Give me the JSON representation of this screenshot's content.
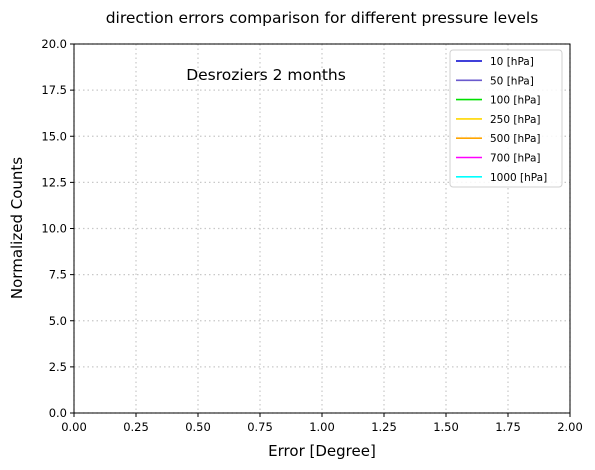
{
  "chart_data": {
    "type": "line",
    "title": "direction errors comparison for different pressure levels",
    "annotation": "Desroziers 2 months",
    "xlabel": "Error [Degree]",
    "ylabel": "Normalized Counts",
    "xlim": [
      0,
      2
    ],
    "ylim": [
      0,
      20
    ],
    "xticks": [
      "0.00",
      "0.25",
      "0.50",
      "0.75",
      "1.00",
      "1.25",
      "1.50",
      "1.75",
      "2.00"
    ],
    "yticks": [
      "0.0",
      "2.5",
      "5.0",
      "7.5",
      "10.0",
      "12.5",
      "15.0",
      "17.5",
      "20.0"
    ],
    "grid": true,
    "legend_position": "top-right",
    "series": [
      {
        "name": "10 [hPa]",
        "color": "#0000cd",
        "values": []
      },
      {
        "name": "50 [hPa]",
        "color": "#6a5acd",
        "values": []
      },
      {
        "name": "100 [hPa]",
        "color": "#00e000",
        "values": []
      },
      {
        "name": "250 [hPa]",
        "color": "#ffd700",
        "values": []
      },
      {
        "name": "500 [hPa]",
        "color": "#ffa500",
        "values": []
      },
      {
        "name": "700 [hPa]",
        "color": "#ff00ff",
        "values": []
      },
      {
        "name": "1000 [hPa]",
        "color": "#00ffff",
        "values": []
      }
    ]
  }
}
